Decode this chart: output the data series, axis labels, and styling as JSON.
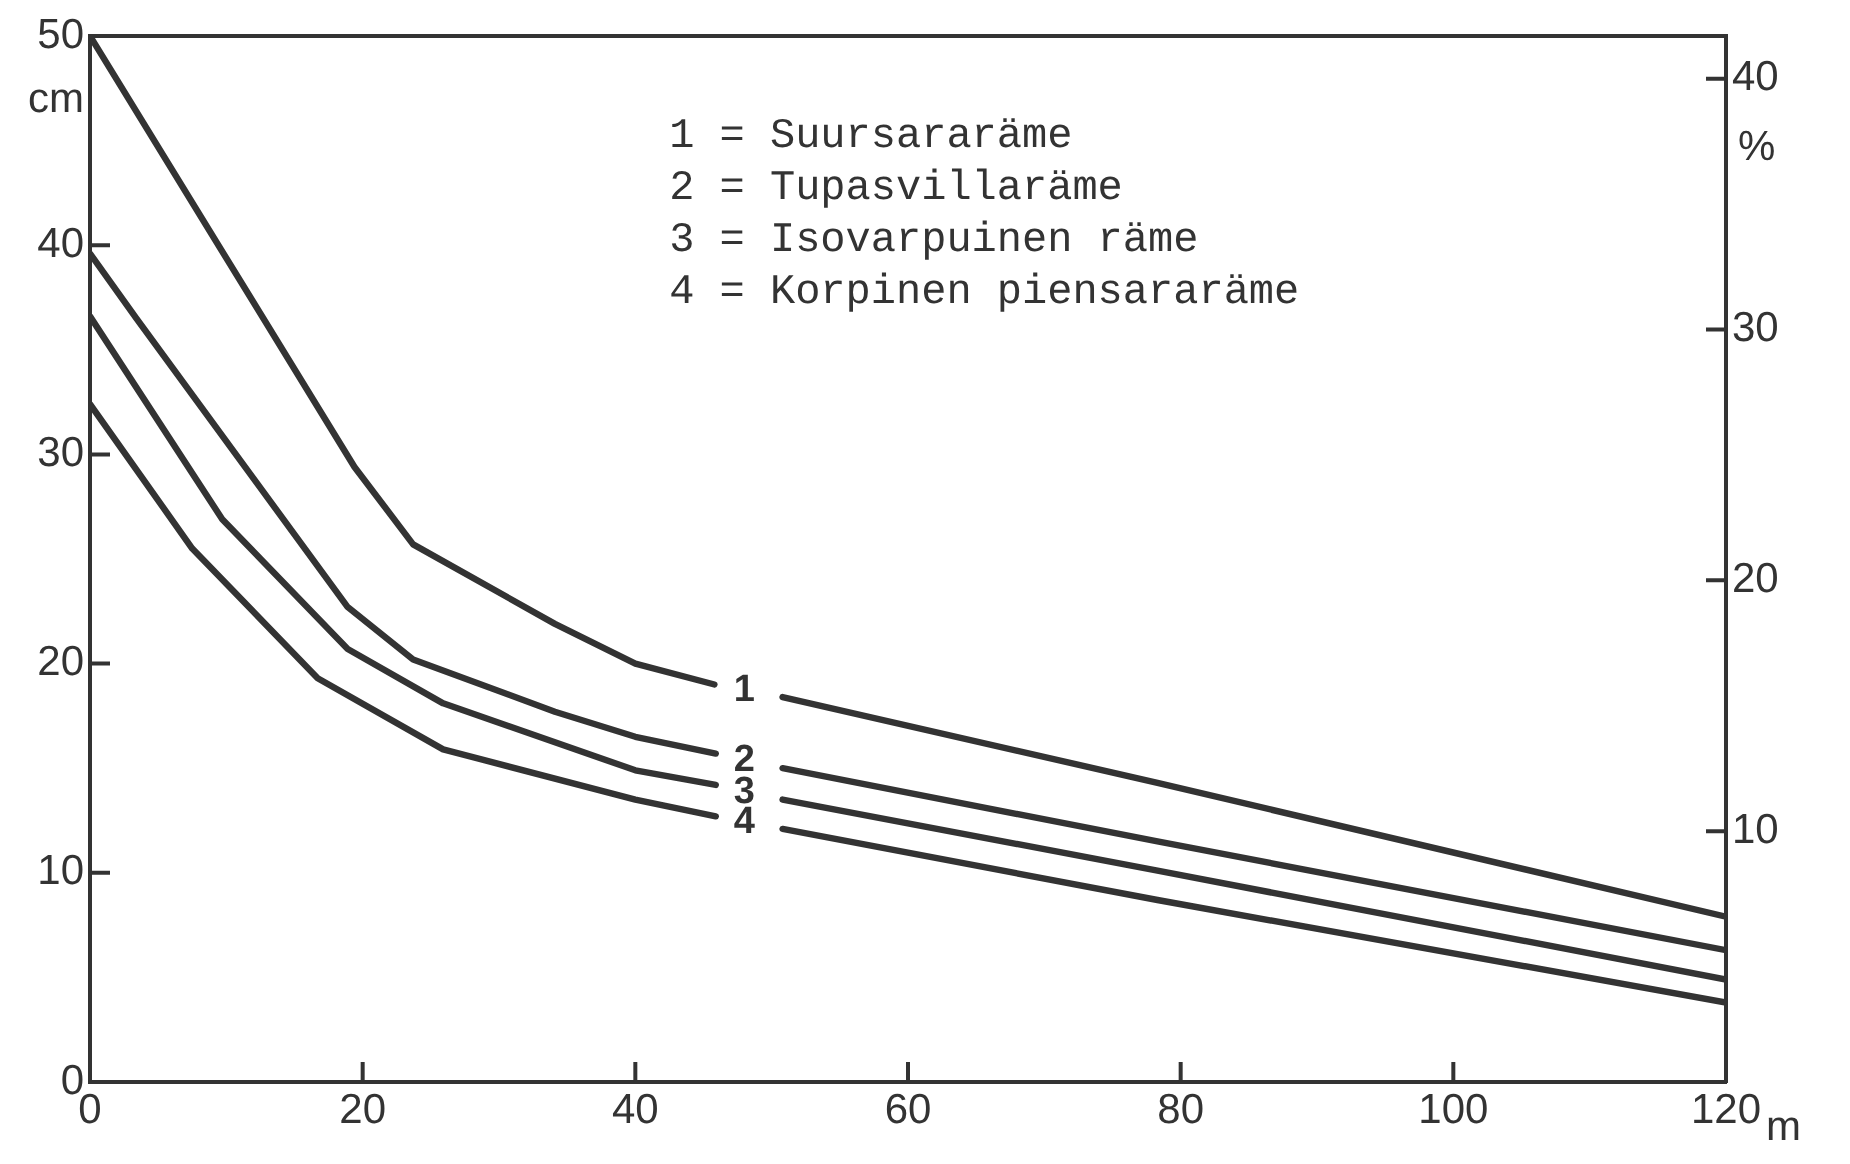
{
  "chart_data": {
    "type": "line",
    "xlabel": "m",
    "ylabel": "cm",
    "y2label": "%",
    "xlim": [
      0,
      120
    ],
    "xticks": [
      0,
      20,
      40,
      60,
      80,
      100,
      120
    ],
    "ylim": [
      0,
      50
    ],
    "yticks": [
      0,
      10,
      20,
      30,
      40,
      50
    ],
    "y2lim": [
      0,
      41.7
    ],
    "y2ticks": [
      10,
      20,
      30,
      40
    ],
    "grid": false,
    "marker": "none",
    "line_style": "solid",
    "series": [
      {
        "name": "1",
        "color": "#333333",
        "x": [
          0,
          19.4,
          23.7,
          34.1,
          40,
          45.8,
          48,
          50.8,
          78.3,
          120
        ],
        "values": [
          50,
          29.4,
          25.7,
          21.9,
          20,
          19,
          null,
          18.4,
          14.3,
          7.9
        ]
      },
      {
        "name": "2",
        "color": "#333333",
        "x": [
          0,
          3.4,
          18.9,
          23.7,
          34.1,
          40,
          45.9,
          48,
          50.8,
          78.3,
          120
        ],
        "values": [
          39.6,
          36.5,
          22.7,
          20.2,
          17.7,
          16.5,
          15.7,
          null,
          15,
          11.5,
          6.3
        ]
      },
      {
        "name": "3",
        "color": "#333333",
        "x": [
          0,
          9.7,
          18.9,
          25.9,
          40,
          45.9,
          48,
          50.8,
          78.3,
          120
        ],
        "values": [
          36.6,
          26.9,
          20.7,
          18.1,
          14.9,
          14.2,
          null,
          13.5,
          10.1,
          4.9
        ]
      },
      {
        "name": "4",
        "color": "#333333",
        "x": [
          0,
          7.5,
          16.7,
          25.9,
          40,
          45.9,
          48,
          50.8,
          78.3,
          120
        ],
        "values": [
          32.4,
          25.5,
          19.3,
          15.9,
          13.5,
          12.7,
          null,
          12.1,
          8.7,
          3.8
        ]
      }
    ],
    "annotations": [
      "1 = Suursararäme",
      "2 = Tupasvillaräme",
      "3 = Isovarpuinen räme",
      "4 = Korpinen piensararäme"
    ]
  }
}
